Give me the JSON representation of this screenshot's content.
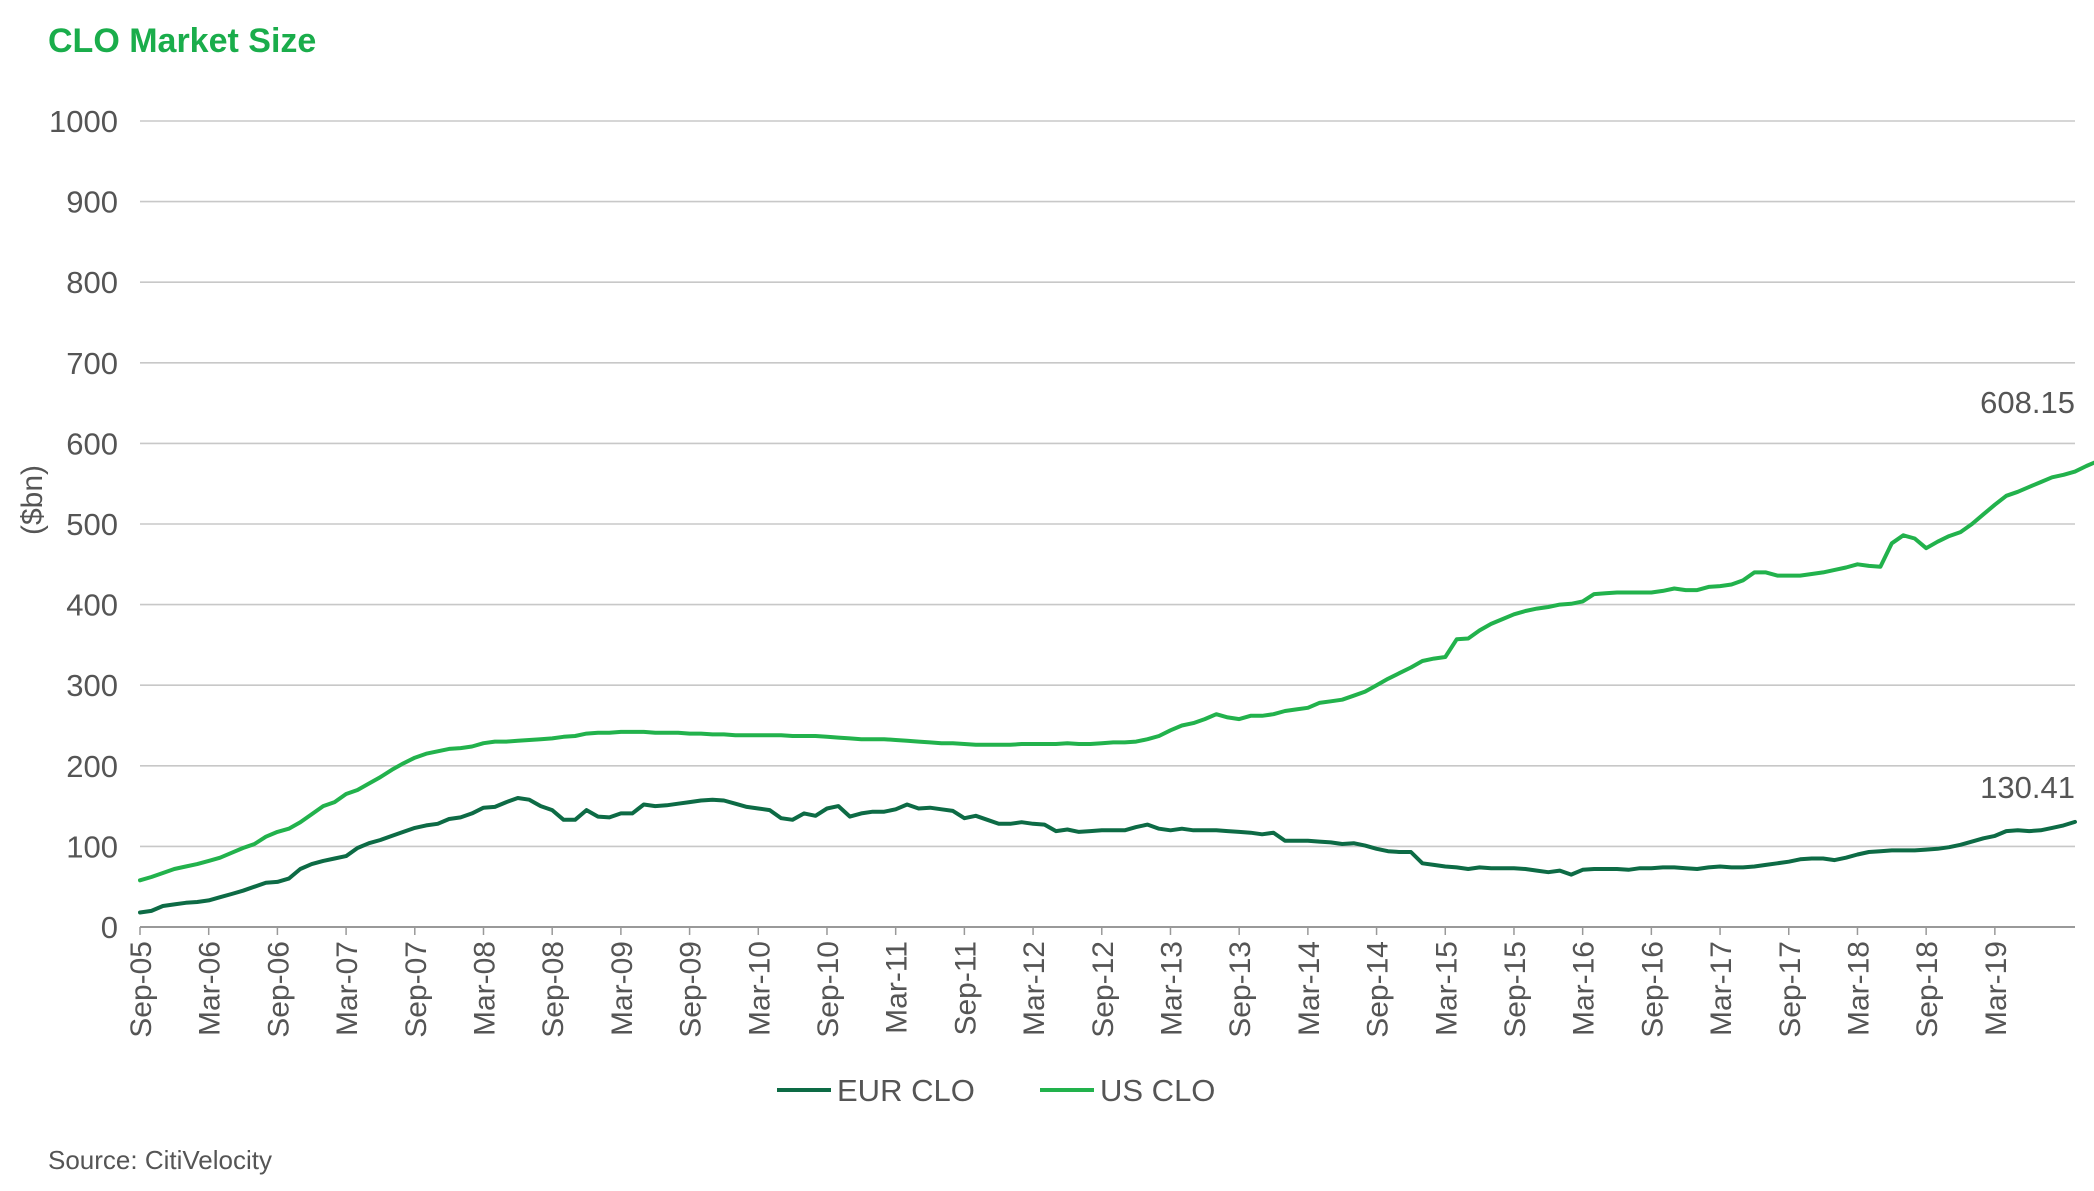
{
  "chart_data": {
    "type": "line",
    "title": "CLO Market Size",
    "ylabel": "($bn)",
    "xlabel": "",
    "ylim": [
      0,
      1000
    ],
    "yticks": [
      0,
      100,
      200,
      300,
      400,
      500,
      600,
      700,
      800,
      900,
      1000
    ],
    "ytick_labels": [
      "0",
      "100",
      "200",
      "300",
      "400",
      "500",
      "600",
      "700",
      "800",
      "900",
      "1000"
    ],
    "x_tick_labels": [
      "Sep-05",
      "Mar-06",
      "Sep-06",
      "Mar-07",
      "Sep-07",
      "Mar-08",
      "Sep-08",
      "Mar-09",
      "Sep-09",
      "Mar-10",
      "Sep-10",
      "Mar-11",
      "Sep-11",
      "Mar-12",
      "Sep-12",
      "Mar-13",
      "Sep-13",
      "Mar-14",
      "Sep-14",
      "Mar-15",
      "Sep-15",
      "Mar-16",
      "Sep-16",
      "Mar-17",
      "Sep-17",
      "Mar-18",
      "Sep-18",
      "Mar-19"
    ],
    "grid": true,
    "legend_position": "bottom-center",
    "series": [
      {
        "name": "EUR CLO",
        "color": "#0d6b45",
        "end_label": "130.41",
        "values": [
          18,
          20,
          26,
          28,
          30,
          31,
          33,
          37,
          41,
          45,
          50,
          55,
          56,
          60,
          72,
          78,
          82,
          85,
          88,
          98,
          104,
          108,
          113,
          118,
          123,
          126,
          128,
          134,
          136,
          141,
          148,
          149,
          155,
          160,
          158,
          150,
          145,
          133,
          133,
          145,
          137,
          136,
          141,
          141,
          152,
          150,
          151,
          153,
          155,
          157,
          158,
          157,
          153,
          149,
          147,
          145,
          135,
          133,
          141,
          138,
          147,
          150,
          137,
          141,
          143,
          143,
          146,
          152,
          147,
          148,
          146,
          144,
          135,
          138,
          133,
          128,
          128,
          130,
          128,
          127,
          119,
          121,
          118,
          119,
          120,
          120,
          120,
          124,
          127,
          122,
          120,
          122,
          120,
          120,
          120,
          119,
          118,
          117,
          115,
          117,
          107,
          107,
          107,
          106,
          105,
          103,
          104,
          101,
          97,
          94,
          93,
          93,
          79,
          77,
          75,
          74,
          72,
          74,
          73,
          73,
          73,
          72,
          70,
          68,
          70,
          65,
          71,
          72,
          72,
          72,
          71,
          73,
          73,
          74,
          74,
          73,
          72,
          74,
          75,
          74,
          74,
          75,
          77,
          79,
          81,
          84,
          85,
          85,
          83,
          86,
          90,
          93,
          94,
          95,
          95,
          95,
          96,
          97,
          99,
          102,
          106,
          110,
          113,
          119,
          120,
          119,
          120,
          123,
          126,
          130.41
        ]
      },
      {
        "name": "US CLO",
        "color": "#22b24c",
        "end_label": "608.15",
        "values": [
          58,
          62,
          67,
          72,
          75,
          78,
          82,
          86,
          92,
          98,
          103,
          112,
          118,
          122,
          130,
          140,
          150,
          155,
          165,
          170,
          178,
          186,
          195,
          203,
          210,
          215,
          218,
          221,
          222,
          224,
          228,
          230,
          230,
          231,
          232,
          233,
          234,
          236,
          237,
          240,
          241,
          241,
          242,
          242,
          242,
          241,
          241,
          241,
          240,
          240,
          239,
          239,
          238,
          238,
          238,
          238,
          238,
          237,
          237,
          237,
          236,
          235,
          234,
          233,
          233,
          233,
          232,
          231,
          230,
          229,
          228,
          228,
          227,
          226,
          226,
          226,
          226,
          227,
          227,
          227,
          227,
          228,
          227,
          227,
          228,
          229,
          229,
          230,
          233,
          237,
          244,
          250,
          253,
          258,
          264,
          260,
          258,
          262,
          262,
          264,
          268,
          270,
          272,
          278,
          280,
          282,
          287,
          292,
          300,
          308,
          315,
          322,
          330,
          333,
          335,
          357,
          358,
          368,
          376,
          382,
          388,
          392,
          395,
          397,
          400,
          401,
          404,
          413,
          414,
          415,
          415,
          415,
          415,
          417,
          420,
          418,
          418,
          422,
          423,
          425,
          430,
          440,
          440,
          436,
          436,
          436,
          438,
          440,
          443,
          446,
          450,
          448,
          447,
          476,
          486,
          482,
          470,
          478,
          485,
          490,
          500,
          512,
          524,
          535,
          540,
          546,
          552,
          558,
          561,
          565,
          572,
          578,
          585,
          595,
          608.15
        ]
      }
    ]
  },
  "source": "Source: CitiVelocity",
  "colors": {
    "title": "#1aad4b",
    "grid": "#c8c8c8",
    "axis_text": "#555555"
  }
}
